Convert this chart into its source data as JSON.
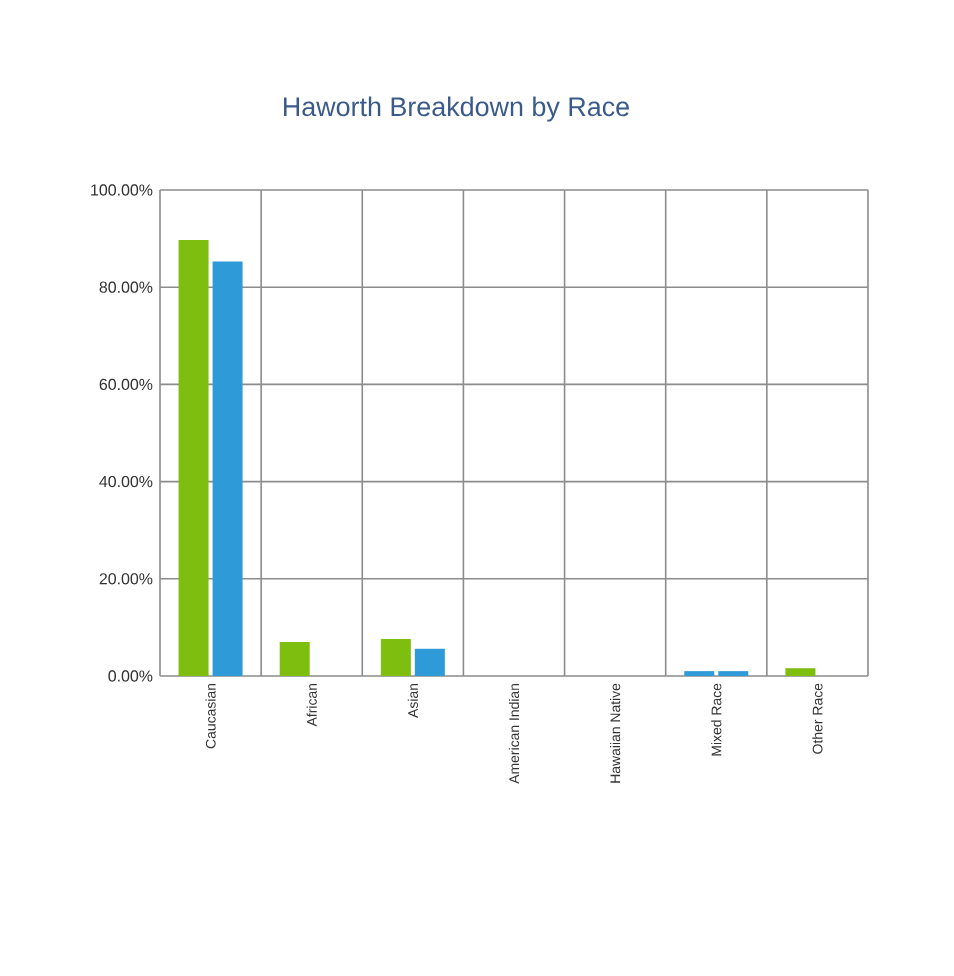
{
  "chart_data": {
    "type": "bar",
    "title": "Haworth Breakdown by Race",
    "categories": [
      "Caucasian",
      "African",
      "Asian",
      "American Indian",
      "Hawaiian Native",
      "Mixed Race",
      "Other Race"
    ],
    "series": [
      {
        "colors": [
          "#7dbe0e",
          "#7dbe0e",
          "#7dbe0e",
          "#7dbe0e",
          "#7dbe0e",
          "#2e9ad8",
          "#7dbe0e"
        ],
        "values": [
          89.7,
          7.0,
          7.6,
          0,
          0,
          1.0,
          1.6
        ]
      },
      {
        "color": "#2e9ad8",
        "values": [
          85.3,
          0,
          5.6,
          0,
          0,
          1.0,
          0
        ]
      }
    ],
    "ylim": [
      0,
      100
    ],
    "yticks": [
      {
        "value": 0,
        "label": "0.00%"
      },
      {
        "value": 20,
        "label": "20.00%"
      },
      {
        "value": 40,
        "label": "40.00%"
      },
      {
        "value": 60,
        "label": "60.00%"
      },
      {
        "value": 80,
        "label": "80.00%"
      },
      {
        "value": 100,
        "label": "100.00%"
      }
    ],
    "grid": true
  }
}
